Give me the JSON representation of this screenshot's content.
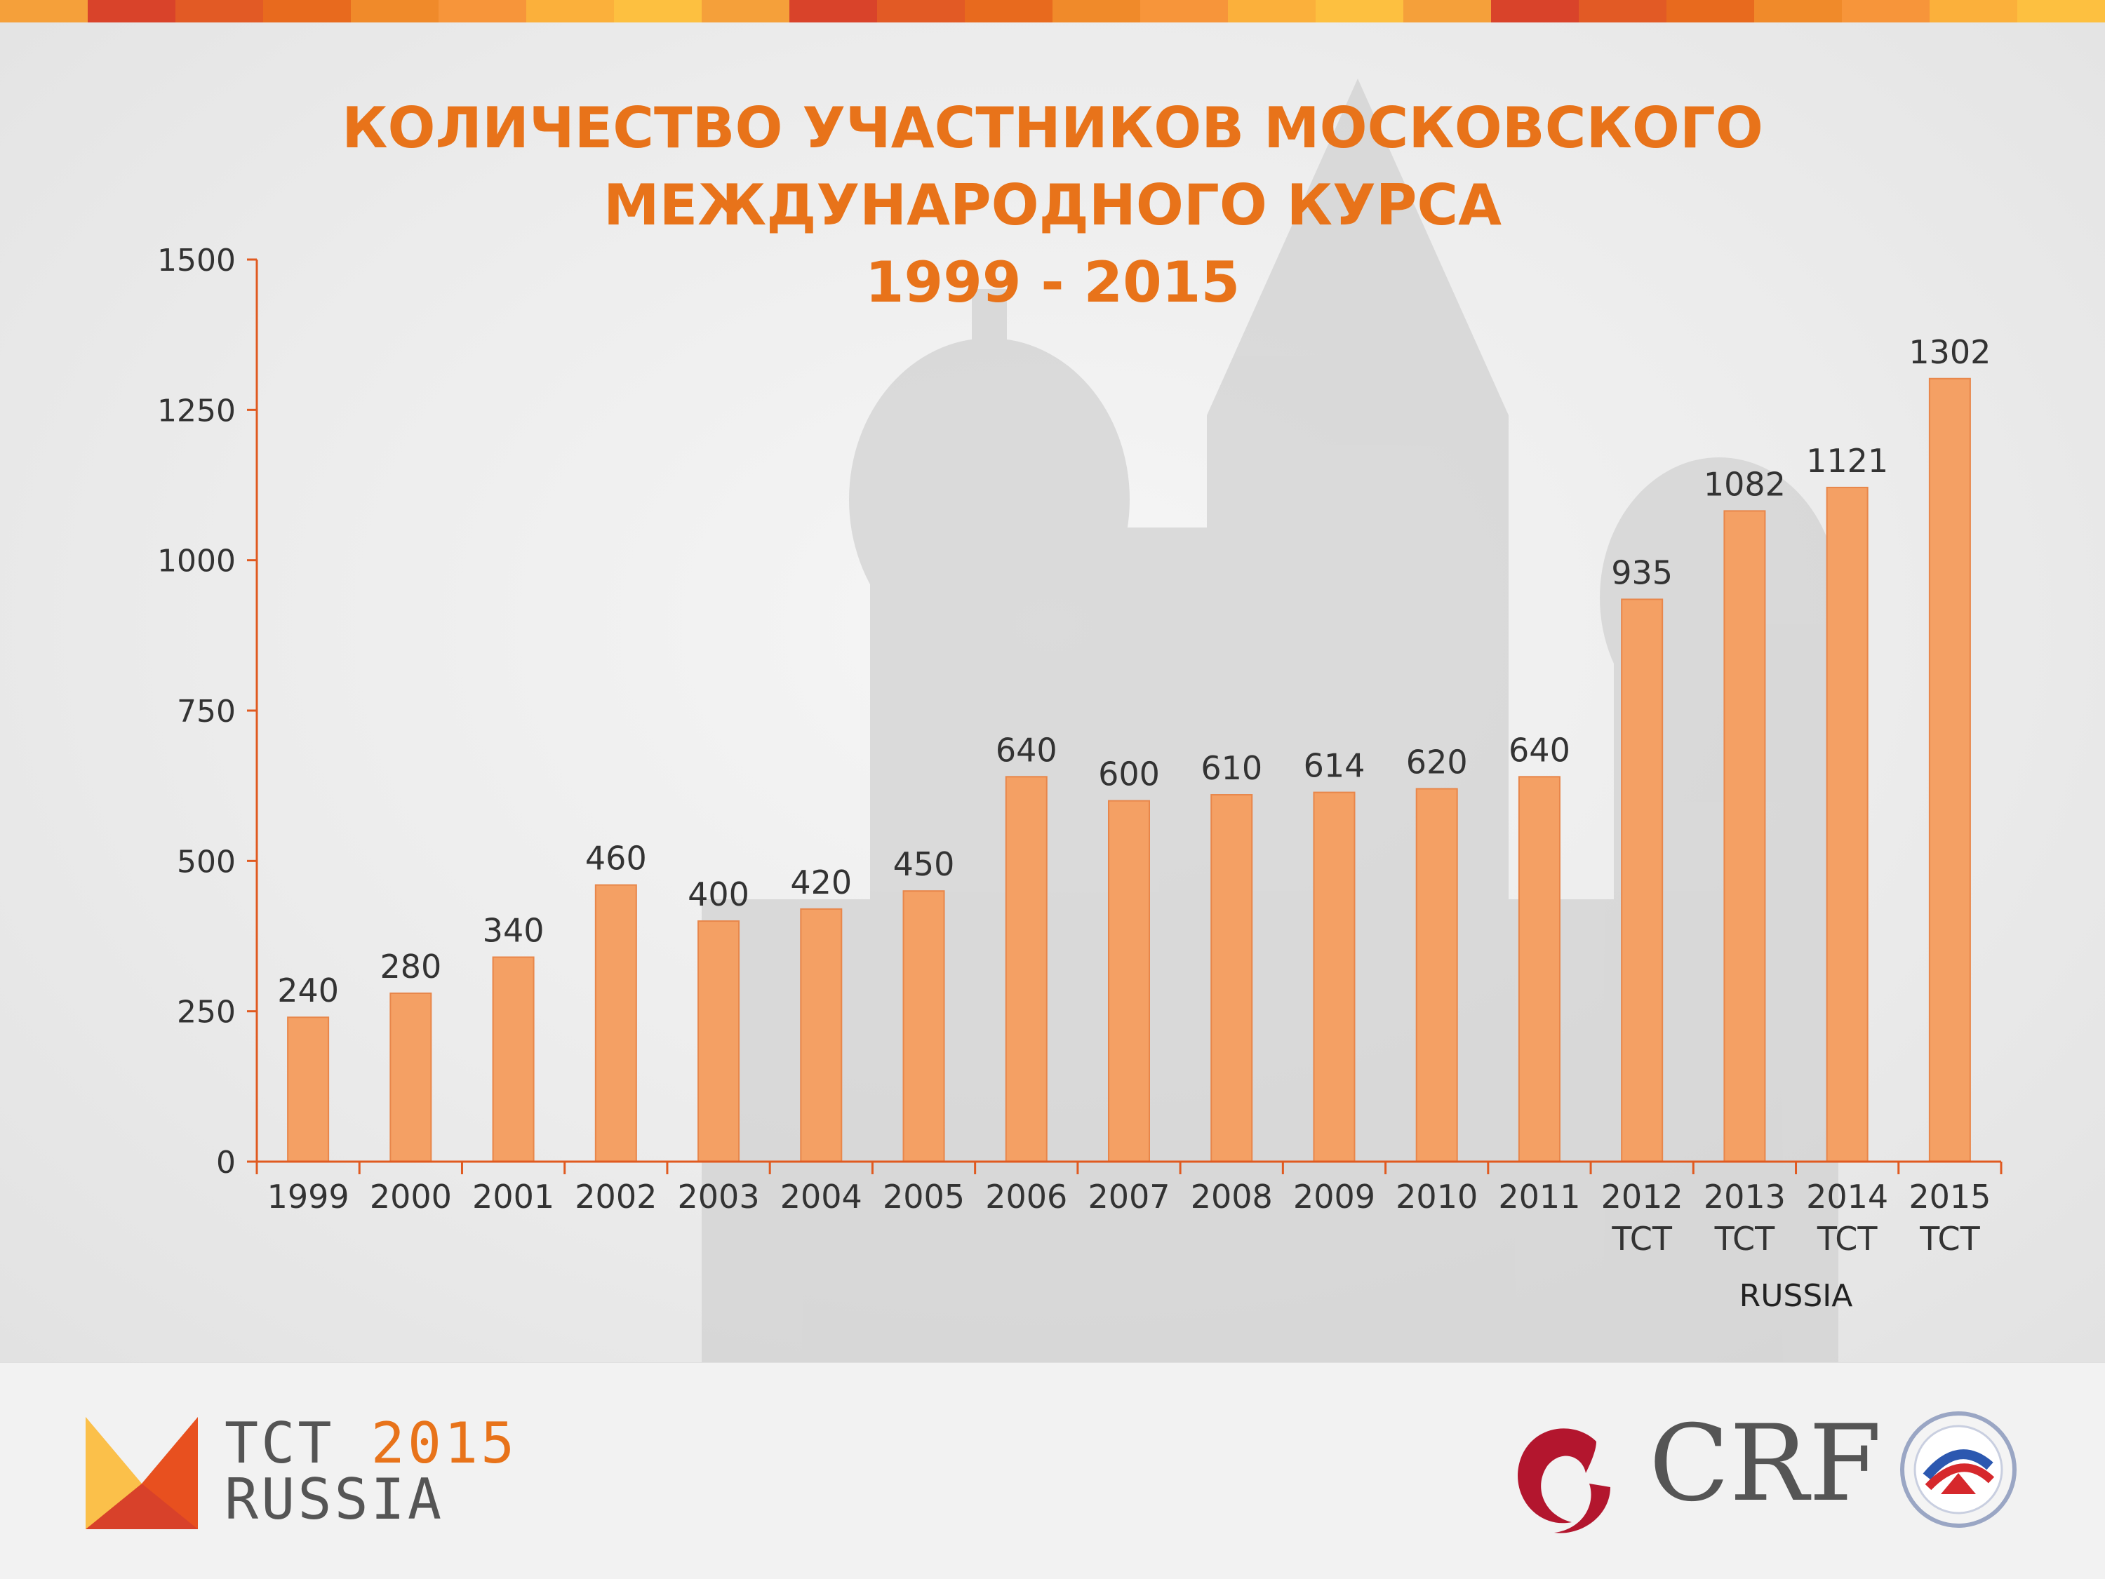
{
  "title": {
    "line1": "КОЛИЧЕСТВО УЧАСТНИКОВ МОСКОВСКОГО",
    "line2": "МЕЖДУНАРОДНОГО КУРСА",
    "line3": "1999 - 2015"
  },
  "colors": {
    "accent": "#e8731a",
    "bar": "#f4a064",
    "axis": "#e05a20",
    "stripe": [
      "#f5a03a",
      "#e86a1e",
      "#fbb03b",
      "#d9432a",
      "#f08a2a",
      "#fdc040",
      "#e25a25",
      "#f7953a"
    ]
  },
  "chart_data": {
    "type": "bar",
    "categories": [
      "1999",
      "2000",
      "2001",
      "2002",
      "2003",
      "2004",
      "2005",
      "2006",
      "2007",
      "2008",
      "2009",
      "2010",
      "2011",
      "2012\nTCT",
      "2013\nTCT",
      "2014\nTCT",
      "2015\nTCT"
    ],
    "values": [
      240,
      280,
      340,
      460,
      400,
      420,
      450,
      640,
      600,
      610,
      614,
      620,
      640,
      935,
      1082,
      1121,
      1302
    ],
    "ylim": [
      0,
      1500
    ],
    "yticks": [
      0,
      250,
      500,
      750,
      1000,
      1250,
      1500
    ],
    "group_label": "RUSSIA",
    "group_label_under": [
      "2013\nTCT",
      "2014\nTCT"
    ],
    "grid": false,
    "data_labels": true
  },
  "footer": {
    "tct_brand": "TCT",
    "tct_year": "2015",
    "tct_sub": "RUSSIA",
    "crf_text": "CRF"
  }
}
